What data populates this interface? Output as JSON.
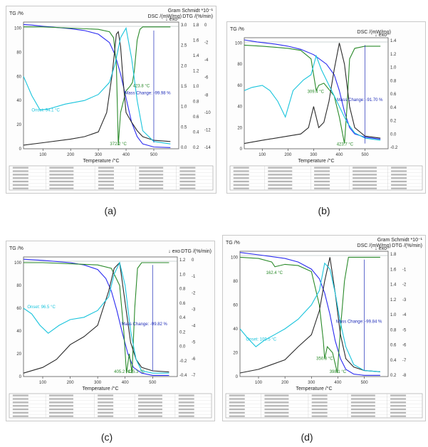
{
  "chart_data": [
    {
      "type": "line",
      "panel_label": "(a)",
      "left_axis_label": "TG /%",
      "right_header": "Gram Schmidt *10⁻¹",
      "right_sub_dsc": "DSC /(mW/mg)",
      "right_sub_dtg": "DTG /(%/min)",
      "exo_label": "↓ exo",
      "xlabel": "Temperature /°C",
      "xlim": [
        30,
        590
      ],
      "x_ticks": [
        "100",
        "200",
        "300",
        "400",
        "500"
      ],
      "tg_ylim": [
        0,
        105
      ],
      "tg_ticks": [
        "0",
        "20",
        "40",
        "60",
        "80",
        "100"
      ],
      "dsc_ticks": [
        "3.0",
        "2.5",
        "2.0",
        "1.5",
        "1.0",
        "0.5",
        "0.0"
      ],
      "dtg_ticks": [
        "1.8",
        "1.6",
        "1.4",
        "1.2",
        "1.0",
        "0.8",
        "0.6",
        "0.4",
        "0.2"
      ],
      "dtg2_ticks": [
        "0",
        "-2",
        "-4",
        "-6",
        "-8",
        "-10",
        "-12",
        "-14"
      ],
      "annotations": [
        {
          "text": "Onset: 94.1 °C",
          "x": 110,
          "y": 31,
          "color": "#19c4dc"
        },
        {
          "text": "423.8 °C",
          "x": 455,
          "y": 51,
          "color": "#2a8a2a"
        },
        {
          "text": "Mass Change: -99.98 %",
          "x": 478,
          "y": 45,
          "color": "#1d2bb8"
        },
        {
          "text": "372.2 °C",
          "x": 372,
          "y": 3,
          "color": "#2a8a2a"
        }
      ],
      "series": [
        {
          "color": "#2a2af0",
          "x": [
            30,
            60,
            100,
            150,
            200,
            250,
            300,
            340,
            360,
            380,
            400,
            420,
            440,
            460,
            500,
            560
          ],
          "y": [
            103,
            102.5,
            101.5,
            100.5,
            99.5,
            98,
            95,
            88,
            78,
            62,
            42,
            22,
            10,
            4,
            1.5,
            1
          ]
        },
        {
          "color": "#2a8a2a",
          "x": [
            30,
            100,
            200,
            300,
            340,
            355,
            365,
            372,
            380,
            400,
            415,
            423,
            430,
            440,
            450,
            460,
            500,
            560
          ],
          "y": [
            101,
            101,
            100,
            99,
            97,
            92,
            70,
            3,
            30,
            48,
            52,
            55,
            65,
            90,
            99,
            101,
            101,
            101
          ]
        },
        {
          "color": "#2a2a2a",
          "x": [
            30,
            100,
            200,
            250,
            300,
            330,
            350,
            365,
            372,
            380,
            390,
            400,
            420,
            440,
            460,
            500,
            560
          ],
          "y": [
            3,
            5,
            8,
            10,
            14,
            30,
            62,
            95,
            97,
            85,
            55,
            30,
            22,
            15,
            10,
            7,
            6
          ]
        },
        {
          "color": "#19c4dc",
          "x": [
            30,
            60,
            90,
            120,
            180,
            250,
            300,
            340,
            360,
            380,
            400,
            420,
            440,
            460,
            500,
            560
          ],
          "y": [
            60,
            44,
            32,
            33,
            37,
            40,
            45,
            55,
            70,
            92,
            100,
            75,
            40,
            15,
            6,
            4
          ]
        }
      ]
    },
    {
      "type": "line",
      "panel_label": "(b)",
      "left_axis_label": "TG /%",
      "right_header": "",
      "right_sub_dsc": "DSC /(mW/mg)",
      "right_sub_dtg": "",
      "exo_label": "↓ exo",
      "xlabel": "Temperature /°C",
      "xlim": [
        30,
        590
      ],
      "x_ticks": [
        "100",
        "200",
        "300",
        "400",
        "500"
      ],
      "tg_ylim": [
        0,
        105
      ],
      "tg_ticks": [
        "0",
        "20",
        "40",
        "60",
        "80",
        "100"
      ],
      "dsc_ticks": [
        "1.4",
        "1.2",
        "1.0",
        "0.8",
        "0.6",
        "0.4",
        "0.2",
        "0.0",
        "-0.2"
      ],
      "dtg_ticks": [],
      "dtg2_ticks": [],
      "annotations": [
        {
          "text": "309.4 °C",
          "x": 308,
          "y": 53,
          "color": "#2a8a2a"
        },
        {
          "text": "Mass Change: -91.70 %",
          "x": 480,
          "y": 45,
          "color": "#1d2bb8"
        },
        {
          "text": "423.7 °C",
          "x": 422,
          "y": 3,
          "color": "#2a8a2a"
        }
      ],
      "series": [
        {
          "color": "#2a2af0",
          "x": [
            30,
            80,
            150,
            200,
            250,
            300,
            350,
            380,
            400,
            420,
            440,
            460,
            500,
            560
          ],
          "y": [
            103,
            101,
            99,
            97,
            94,
            89,
            80,
            70,
            55,
            35,
            20,
            14,
            11,
            9
          ]
        },
        {
          "color": "#2a8a2a",
          "x": [
            30,
            100,
            200,
            250,
            290,
            300,
            310,
            320,
            340,
            380,
            400,
            420,
            430,
            440,
            460,
            500,
            560
          ],
          "y": [
            98,
            97,
            95,
            93,
            85,
            70,
            55,
            60,
            62,
            50,
            30,
            5,
            40,
            85,
            95,
            97,
            97
          ]
        },
        {
          "color": "#2a2a2a",
          "x": [
            30,
            100,
            200,
            250,
            280,
            300,
            310,
            320,
            340,
            360,
            380,
            400,
            420,
            440,
            460,
            500,
            560
          ],
          "y": [
            5,
            8,
            12,
            14,
            20,
            40,
            30,
            20,
            25,
            45,
            75,
            100,
            80,
            40,
            20,
            12,
            10
          ]
        },
        {
          "color": "#19c4dc",
          "x": [
            30,
            60,
            100,
            130,
            160,
            190,
            220,
            260,
            290,
            310,
            330,
            360,
            380,
            400,
            430,
            460,
            500,
            560
          ],
          "y": [
            55,
            58,
            60,
            55,
            45,
            30,
            55,
            65,
            70,
            88,
            75,
            60,
            50,
            40,
            25,
            15,
            10,
            8
          ]
        }
      ]
    },
    {
      "type": "line",
      "panel_label": "(c)",
      "left_axis_label": "TG /%",
      "right_header": "",
      "right_sub_dsc": "↓ exo",
      "right_sub_dtg": "DTG /(%/min)",
      "exo_label": "",
      "xlabel": "Temperature /°C",
      "xlim": [
        30,
        590
      ],
      "x_ticks": [
        "100",
        "200",
        "300",
        "400",
        "500"
      ],
      "tg_ylim": [
        0,
        105
      ],
      "tg_ticks": [
        "0",
        "20",
        "40",
        "60",
        "80",
        "100"
      ],
      "dsc_ticks": [
        "1.2",
        "1.0",
        "0.8",
        "0.6",
        "0.4",
        "0.2",
        "0.0",
        "-0.2",
        "-0.4"
      ],
      "dtg_ticks": [
        "0",
        "-1",
        "-2",
        "-3",
        "-4",
        "-5",
        "-6",
        "-7"
      ],
      "dtg2_ticks": [],
      "annotations": [
        {
          "text": "Onset: 96.5 °C",
          "x": 95,
          "y": 60,
          "color": "#19c4dc"
        },
        {
          "text": "Mass Change: -99.82 %",
          "x": 470,
          "y": 45,
          "color": "#1d2bb8"
        },
        {
          "text": "405.2 °C",
          "x": 390,
          "y": 3,
          "color": "#2a8a2a"
        },
        {
          "text": "425.3 °C",
          "x": 440,
          "y": 3,
          "color": "#2a8a2a"
        }
      ],
      "series": [
        {
          "color": "#2a2af0",
          "x": [
            30,
            100,
            200,
            250,
            300,
            330,
            350,
            370,
            390,
            410,
            430,
            460,
            500,
            560
          ],
          "y": [
            103,
            102,
            100,
            98,
            94,
            86,
            75,
            58,
            38,
            20,
            8,
            3,
            1,
            1
          ]
        },
        {
          "color": "#2a8a2a",
          "x": [
            30,
            100,
            200,
            300,
            350,
            380,
            395,
            405,
            415,
            425,
            435,
            445,
            460,
            500,
            560
          ],
          "y": [
            100,
            100,
            99,
            98,
            95,
            80,
            40,
            3,
            20,
            3,
            60,
            95,
            100,
            100,
            100
          ]
        },
        {
          "color": "#2a2a2a",
          "x": [
            30,
            100,
            150,
            200,
            250,
            300,
            340,
            360,
            380,
            400,
            420,
            440,
            460,
            500,
            560
          ],
          "y": [
            3,
            8,
            15,
            28,
            35,
            45,
            75,
            95,
            100,
            65,
            30,
            15,
            8,
            5,
            4
          ]
        },
        {
          "color": "#19c4dc",
          "x": [
            30,
            60,
            90,
            120,
            160,
            200,
            250,
            300,
            340,
            360,
            380,
            400,
            420,
            440,
            460,
            500,
            560
          ],
          "y": [
            60,
            55,
            45,
            38,
            45,
            50,
            52,
            58,
            70,
            90,
            100,
            80,
            40,
            15,
            5,
            3,
            3
          ]
        }
      ]
    },
    {
      "type": "line",
      "panel_label": "(d)",
      "left_axis_label": "TG /%",
      "right_header": "Gram Schmidt *10⁻¹",
      "right_sub_dsc": "DSC /(mW/mg)",
      "right_sub_dtg": "DTG /(%/min)",
      "exo_label": "↓ exo",
      "xlabel": "Temperature /°C",
      "xlim": [
        30,
        590
      ],
      "x_ticks": [
        "100",
        "200",
        "300",
        "400",
        "500"
      ],
      "tg_ylim": [
        0,
        105
      ],
      "tg_ticks": [
        "0",
        "20",
        "40",
        "60",
        "80",
        "100"
      ],
      "dsc_ticks": [
        "1.8",
        "1.6",
        "1.4",
        "1.2",
        "1.0",
        "0.8",
        "0.6",
        "0.4",
        "0.2"
      ],
      "dtg_ticks": [
        "",
        "-1",
        "-2",
        "-3",
        "-4",
        "-5",
        "-6",
        "-7",
        "-8"
      ],
      "dtg2_ticks": [],
      "annotations": [
        {
          "text": "162.4 °C",
          "x": 160,
          "y": 86,
          "color": "#2a8a2a"
        },
        {
          "text": "Onset: 109.5 °C",
          "x": 110,
          "y": 30,
          "color": "#19c4dc"
        },
        {
          "text": "Mass Change: -99.84 %",
          "x": 480,
          "y": 45,
          "color": "#1d2bb8"
        },
        {
          "text": "350.8 °C",
          "x": 350,
          "y": 14,
          "color": "#2a8a2a"
        },
        {
          "text": "398.1 °C",
          "x": 400,
          "y": 3,
          "color": "#2a8a2a"
        }
      ],
      "series": [
        {
          "color": "#2a2af0",
          "x": [
            30,
            100,
            200,
            250,
            300,
            330,
            350,
            370,
            390,
            410,
            430,
            460,
            500,
            560
          ],
          "y": [
            104,
            102,
            99,
            96,
            90,
            82,
            70,
            52,
            30,
            15,
            6,
            2,
            1,
            1
          ]
        },
        {
          "color": "#2a8a2a",
          "x": [
            30,
            100,
            150,
            162,
            200,
            250,
            300,
            330,
            345,
            350,
            360,
            380,
            398,
            410,
            425,
            440,
            460,
            500,
            560
          ],
          "y": [
            100,
            99,
            96,
            92,
            94,
            93,
            88,
            60,
            30,
            15,
            25,
            20,
            3,
            40,
            80,
            100,
            100,
            100,
            100
          ]
        },
        {
          "color": "#2a2a2a",
          "x": [
            30,
            100,
            150,
            200,
            250,
            300,
            330,
            350,
            370,
            390,
            410,
            430,
            460,
            500,
            560
          ],
          "y": [
            3,
            6,
            10,
            14,
            25,
            35,
            55,
            80,
            100,
            70,
            35,
            15,
            8,
            5,
            4
          ]
        },
        {
          "color": "#19c4dc",
          "x": [
            30,
            60,
            90,
            120,
            160,
            200,
            250,
            300,
            330,
            350,
            370,
            390,
            410,
            430,
            460,
            500,
            560
          ],
          "y": [
            40,
            32,
            25,
            30,
            35,
            40,
            48,
            60,
            72,
            95,
            90,
            70,
            45,
            25,
            10,
            5,
            4
          ]
        }
      ]
    }
  ]
}
